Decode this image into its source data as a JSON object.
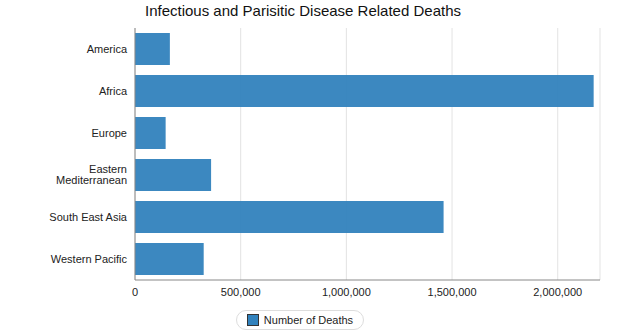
{
  "chart_data": {
    "type": "bar",
    "title": "Infectious and Parisitic Disease Related Deaths",
    "orientation": "horizontal",
    "categories": [
      "America",
      "Africa",
      "Europe",
      "Eastern Mediterranean",
      "South East Asia",
      "Western Pacific"
    ],
    "series": [
      {
        "name": "Number of Deaths",
        "color": "#3182bd",
        "values": [
          165000,
          2170000,
          145000,
          360000,
          1460000,
          325000
        ]
      }
    ],
    "xlim": [
      0,
      2200000
    ],
    "xticks": [
      0,
      {
        "value": 500000,
        "label": "500,000"
      },
      {
        "value": 1000000,
        "label": "1,000,000"
      },
      {
        "value": 1500000,
        "label": "1,500,000"
      },
      {
        "value": 2000000,
        "label": "2,000,000"
      }
    ],
    "grid": true,
    "legend": "bottom"
  }
}
